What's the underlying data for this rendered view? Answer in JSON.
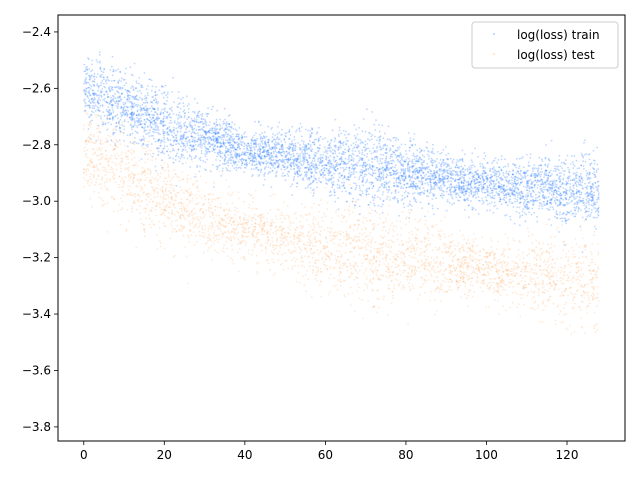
{
  "chart_data": {
    "type": "scatter",
    "title": "",
    "xlabel": "",
    "ylabel": "",
    "xlim": [
      -6.4,
      134.4
    ],
    "ylim": [
      -3.85,
      -2.34
    ],
    "x_ticks": [
      0,
      20,
      40,
      60,
      80,
      100,
      120
    ],
    "y_ticks": [
      -2.4,
      -2.6,
      -2.8,
      -3.0,
      -3.2,
      -3.4,
      -3.6,
      -3.8
    ],
    "x_tick_labels": [
      "0",
      "20",
      "40",
      "60",
      "80",
      "100",
      "120"
    ],
    "y_tick_labels": [
      "−2.4",
      "−2.6",
      "−2.8",
      "−3.0",
      "−3.2",
      "−3.4",
      "−3.6",
      "−3.8"
    ],
    "grid": false,
    "legend_position": "top-right",
    "series": [
      {
        "name": "log(loss) train",
        "color": "#1f77ff",
        "trend": [
          {
            "x": 0,
            "y": -2.6
          },
          {
            "x": 10,
            "y": -2.66
          },
          {
            "x": 20,
            "y": -2.73
          },
          {
            "x": 40,
            "y": -2.82
          },
          {
            "x": 60,
            "y": -2.86
          },
          {
            "x": 80,
            "y": -2.9
          },
          {
            "x": 100,
            "y": -2.94
          },
          {
            "x": 128,
            "y": -2.97
          }
        ]
      },
      {
        "name": "log(loss) test",
        "color": "#ff9f4f",
        "trend": [
          {
            "x": 0,
            "y": -2.83
          },
          {
            "x": 10,
            "y": -2.9
          },
          {
            "x": 20,
            "y": -2.99
          },
          {
            "x": 40,
            "y": -3.1
          },
          {
            "x": 60,
            "y": -3.16
          },
          {
            "x": 80,
            "y": -3.2
          },
          {
            "x": 100,
            "y": -3.24
          },
          {
            "x": 128,
            "y": -3.28
          }
        ]
      }
    ]
  }
}
